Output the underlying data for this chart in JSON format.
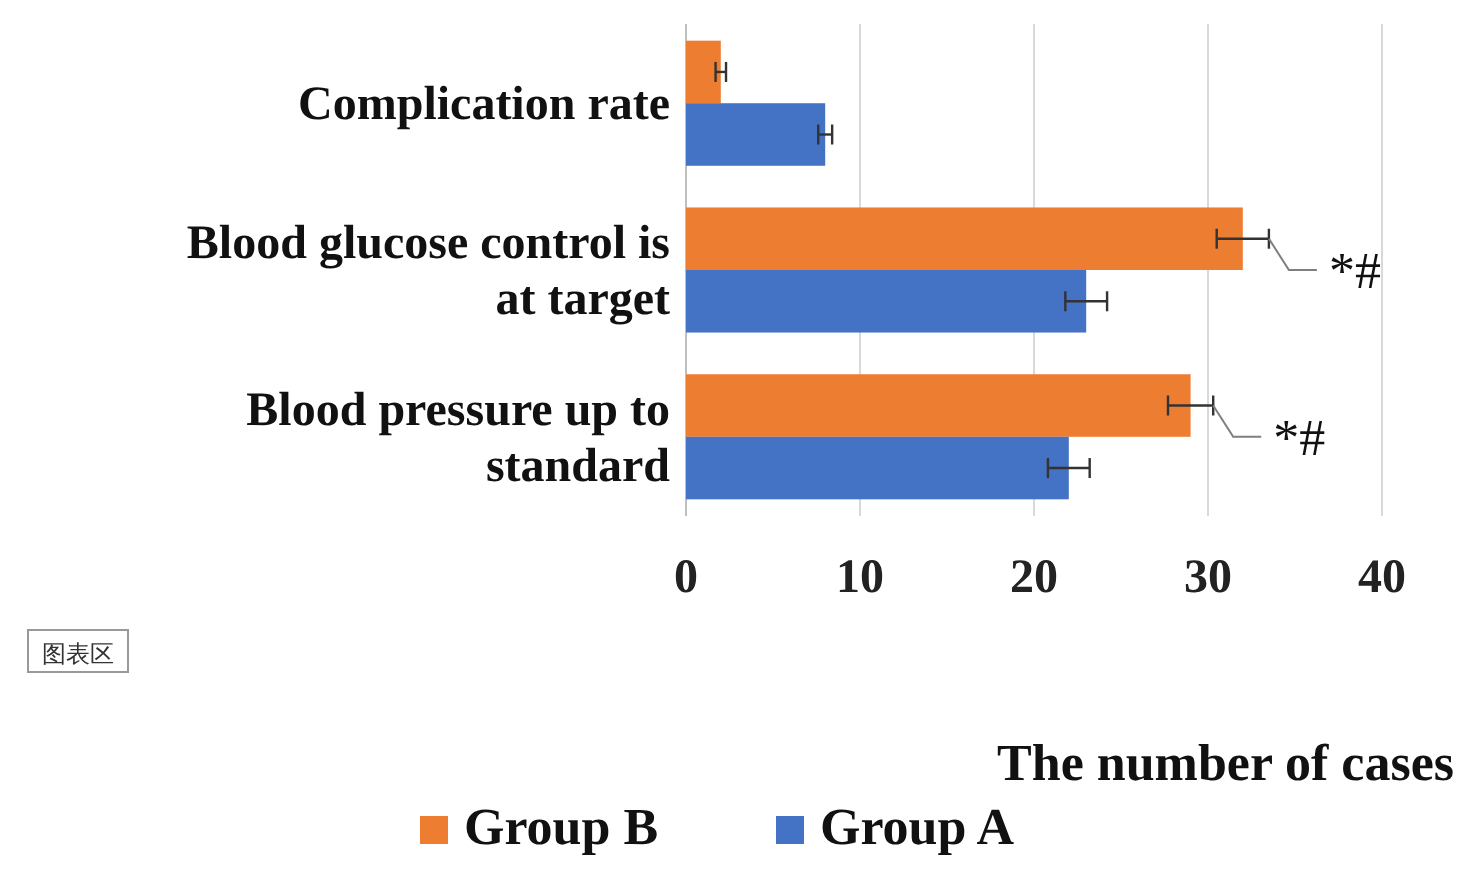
{
  "chart_data": {
    "type": "bar",
    "orientation": "horizontal",
    "categories": [
      "Complication rate",
      "Blood glucose control is at target",
      "Blood pressure up to standard"
    ],
    "series": [
      {
        "name": "Group B",
        "color": "#ed7d31",
        "values": [
          2,
          32,
          29
        ],
        "errors": [
          0.3,
          1.5,
          1.3
        ]
      },
      {
        "name": "Group A",
        "color": "#4472c4",
        "values": [
          8,
          23,
          22
        ],
        "errors": [
          0.4,
          1.2,
          1.2
        ]
      }
    ],
    "xlim": [
      0,
      40
    ],
    "xticks": [
      0,
      10,
      20,
      30,
      40
    ],
    "grid": "x",
    "xlabel": "The number of cases",
    "legend": "bottom",
    "annotations": [
      "*#",
      "*#",
      "图表区"
    ]
  }
}
